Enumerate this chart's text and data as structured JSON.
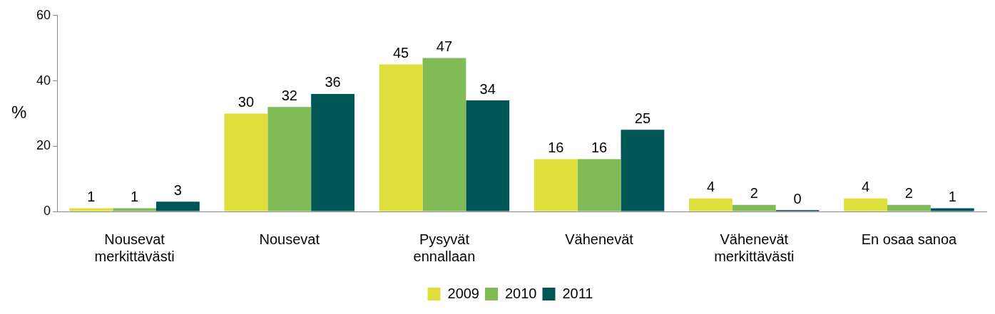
{
  "chart_data": {
    "type": "bar",
    "ylabel": "%",
    "categories": [
      "Nousevat\nmerkittävästi",
      "Nousevat",
      "Pysyvät\nennallaan",
      "Vähenevät",
      "Vähenevät\nmerkittävästi",
      "En osaa sanoa"
    ],
    "series": [
      {
        "name": "2009",
        "color": "#dede3c",
        "values": [
          1,
          30,
          45,
          16,
          4,
          4
        ]
      },
      {
        "name": "2010",
        "color": "#80bb55",
        "values": [
          1,
          32,
          47,
          16,
          2,
          2
        ]
      },
      {
        "name": "2011",
        "color": "#005555",
        "values": [
          3,
          36,
          34,
          25,
          0,
          1
        ]
      }
    ],
    "ylim": [
      0,
      60
    ],
    "yticks": [
      0,
      20,
      40,
      60
    ],
    "grid": false,
    "legend": "bottom",
    "data_labels": true
  }
}
